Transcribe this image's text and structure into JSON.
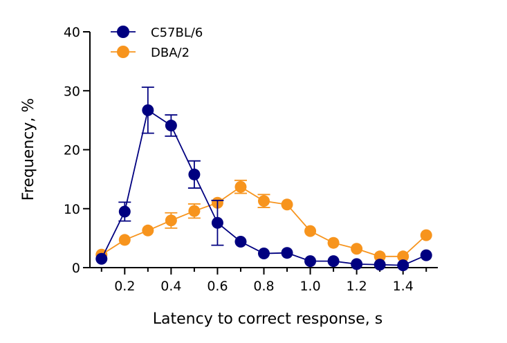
{
  "chart_data": {
    "type": "line",
    "xlabel": "Latency to correct response, s",
    "ylabel": "Frequency, %",
    "xlim": [
      0.05,
      1.55
    ],
    "ylim": [
      0,
      40
    ],
    "x_ticks": [
      0.2,
      0.4,
      0.6,
      0.8,
      1.0,
      1.2,
      1.4
    ],
    "x_tick_labels": [
      "0.2",
      "0.4",
      "0.6",
      "0.8",
      "1.0",
      "1.2",
      "1.4"
    ],
    "y_ticks": [
      0,
      10,
      20,
      30,
      40
    ],
    "y_tick_labels": [
      "0",
      "10",
      "20",
      "30",
      "40"
    ],
    "grid": false,
    "legend_position": "top-left",
    "x": [
      0.1,
      0.2,
      0.3,
      0.4,
      0.5,
      0.6,
      0.7,
      0.8,
      0.9,
      1.0,
      1.1,
      1.2,
      1.3,
      1.4,
      1.5
    ],
    "series": [
      {
        "name": "C57BL/6",
        "color": "#000080",
        "values": [
          1.5,
          9.5,
          26.7,
          24.1,
          15.8,
          7.6,
          4.4,
          2.4,
          2.5,
          1.1,
          1.1,
          0.6,
          0.5,
          0.4,
          2.1
        ],
        "error": [
          0,
          1.6,
          3.9,
          1.8,
          2.3,
          3.8,
          0,
          0,
          0,
          0,
          0,
          0,
          0,
          0,
          0
        ]
      },
      {
        "name": "DBA/2",
        "color": "#f7941d",
        "values": [
          2.2,
          4.7,
          6.3,
          8.0,
          9.6,
          11.0,
          13.7,
          11.3,
          10.7,
          6.2,
          4.2,
          3.2,
          1.9,
          1.9,
          5.5
        ],
        "error": [
          0,
          0,
          0,
          1.3,
          1.2,
          0,
          1.1,
          1.1,
          0,
          0,
          0,
          0,
          0,
          0,
          0
        ]
      }
    ]
  }
}
